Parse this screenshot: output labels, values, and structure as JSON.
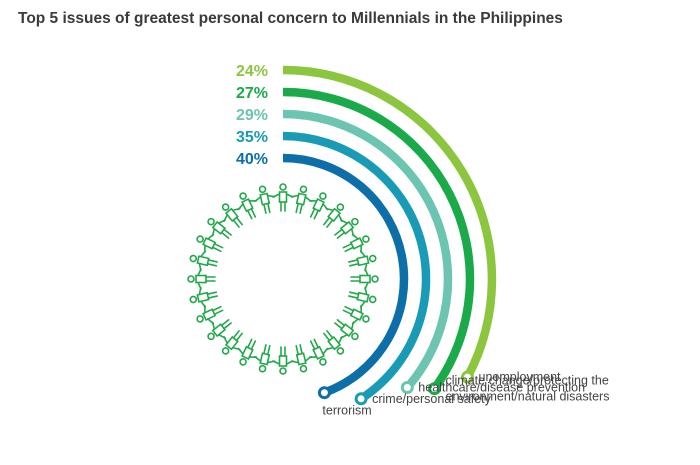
{
  "chart_data": {
    "type": "radial-bar",
    "title": "Top 5 issues of greatest personal concern to Millennials in the Philippines",
    "unit": "%",
    "series": [
      {
        "category": "unemployment",
        "label_lines": [
          "unemployment"
        ],
        "value": 24,
        "value_label": "24%",
        "color": "#8cc63f"
      },
      {
        "category": "climate change/protecting the environment/natural disasters",
        "label_lines": [
          "climate change/protecting the",
          "environment/natural disasters"
        ],
        "value": 27,
        "value_label": "27%",
        "color": "#1aaa4a"
      },
      {
        "category": "healthcare/disease prevention",
        "label_lines": [
          "healthcare/disease prevention"
        ],
        "value": 29,
        "value_label": "29%",
        "color": "#6cc5b0"
      },
      {
        "category": "crime/personal safety",
        "label_lines": [
          "crime/personal safety"
        ],
        "value": 35,
        "value_label": "35%",
        "color": "#1a9bb5"
      },
      {
        "category": "terrorism",
        "label_lines": [
          "terrorism"
        ],
        "value": 40,
        "value_label": "40%",
        "color": "#0d6fa8"
      }
    ]
  },
  "decoration": {
    "people_ring_color": "#22a84a"
  }
}
